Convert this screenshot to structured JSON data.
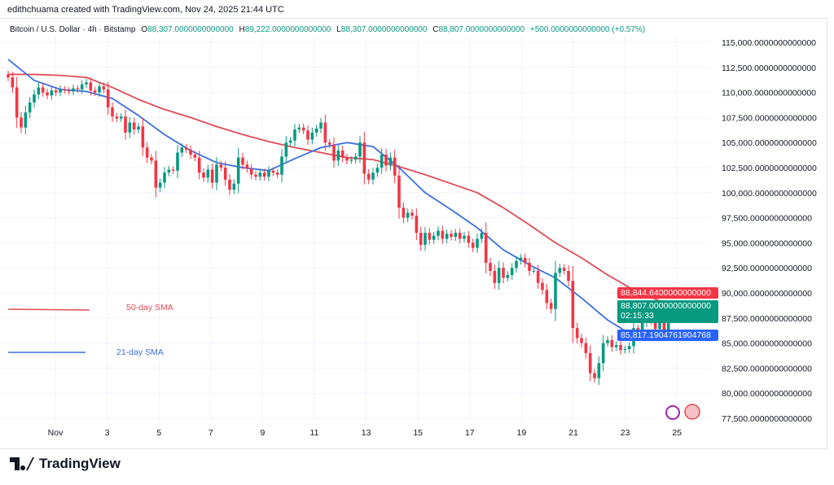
{
  "credit": "edithchuama created with TradingView.com, Nov 24, 2025 21:44 UTC",
  "legend": {
    "symbol": "Bitcoin / U.S. Dollar · 4h · Bitstamp",
    "o_label": "O",
    "o": "88,307.0000000000000",
    "h_label": "H",
    "h": "89,222.0000000000000",
    "l_label": "L",
    "l": "88,307.0000000000000",
    "c_label": "C",
    "c": "88,807.0000000000000",
    "change": "+500.0000000000000 (+0.57%)"
  },
  "badges": {
    "sma50": "88,844.6400000000000",
    "last": "88,807.0000000000000",
    "countdown": "02:15:33",
    "sma21": "85,817.1904761904768"
  },
  "brand": "TradingView",
  "colors": {
    "up": "#089981",
    "down": "#f23645",
    "sma50": "#e04b55",
    "sma21": "#3d6fe0"
  },
  "chart_data": {
    "type": "candlestick",
    "interval": "4h",
    "ylim": [
      76500,
      116500
    ],
    "y_ticks": [
      115000,
      112500,
      110000,
      107500,
      105000,
      102500,
      100000,
      97500,
      95000,
      92500,
      90000,
      87500,
      85000,
      82500,
      80000,
      77500
    ],
    "y_tick_labels": [
      "115,000.0000000000000",
      "112,500.0000000000000",
      "110,000.0000000000000",
      "107,500.0000000000000",
      "105,000.0000000000000",
      "102,500.0000000000000",
      "100,000.0000000000000",
      "97,500.0000000000000",
      "95,000.0000000000000",
      "92,500.0000000000000",
      "90,000.0000000000000",
      "87,500.0000000000000",
      "85,000.0000000000000",
      "82,500.0000000000000",
      "80,000.0000000000000",
      "77,500.0000000000000"
    ],
    "x_tick_labels": [
      "Nov",
      "3",
      "5",
      "7",
      "9",
      "11",
      "13",
      "15",
      "17",
      "19",
      "21",
      "23",
      "25"
    ],
    "first_open": 111800,
    "closes": [
      111500,
      110500,
      107500,
      106500,
      108000,
      109000,
      109800,
      110500,
      110000,
      109700,
      110200,
      110000,
      110300,
      110200,
      110100,
      110400,
      110300,
      110800,
      111000,
      110200,
      110000,
      110600,
      110300,
      108500,
      107600,
      107400,
      107600,
      106000,
      107000,
      106300,
      106600,
      104500,
      103500,
      103200,
      100500,
      101000,
      102000,
      102300,
      102200,
      104000,
      104500,
      104300,
      103800,
      103500,
      102000,
      101500,
      102300,
      101000,
      102800,
      102500,
      101300,
      100300,
      100900,
      103500,
      102800,
      102400,
      101800,
      101600,
      102000,
      101600,
      102200,
      102000,
      101800,
      103600,
      105000,
      105200,
      106300,
      106500,
      106200,
      105300,
      106000,
      106400,
      107000,
      105000,
      104800,
      103200,
      104200,
      103500,
      103200,
      103300,
      103600,
      105000,
      101900,
      101300,
      102000,
      102500,
      103800,
      102700,
      103500,
      101700,
      98500,
      97500,
      98000,
      97700,
      96000,
      94800,
      96000,
      95300,
      95700,
      96200,
      95400,
      95900,
      95600,
      96000,
      95400,
      95700,
      95000,
      94500,
      95400,
      96000,
      93000,
      92200,
      91000,
      92500,
      91500,
      91800,
      92500,
      93200,
      93500,
      93000,
      92200,
      92200,
      91000,
      90300,
      89000,
      88400,
      92000,
      92500,
      92200,
      91200,
      86500,
      85500,
      85000,
      84000,
      82000,
      81500,
      83000,
      85000,
      85300,
      84600,
      84800,
      84300,
      84400,
      84700,
      86500,
      86300,
      87000,
      87400,
      87200,
      86400,
      87300,
      86100,
      87500,
      88300,
      88807
    ],
    "series": [
      {
        "name": "50-day SMA",
        "daily": [
          111800,
          111800,
          111700,
          111500,
          110500,
          109300,
          108300,
          107500,
          106600,
          105800,
          105100,
          104500,
          104000,
          103500,
          103300,
          102600,
          101800,
          100900,
          100000,
          98500,
          96800,
          95000,
          93500,
          91800,
          90300,
          89200,
          88845
        ]
      },
      {
        "name": "21-day SMA",
        "daily": [
          113300,
          111200,
          110300,
          110100,
          109400,
          107700,
          105800,
          104200,
          103000,
          102500,
          102200,
          103400,
          104500,
          105000,
          104600,
          102500,
          100000,
          98300,
          96500,
          94300,
          92800,
          91500,
          89500,
          87300,
          85700,
          85300,
          85817
        ]
      }
    ],
    "last_price": 88807,
    "grid": true
  }
}
